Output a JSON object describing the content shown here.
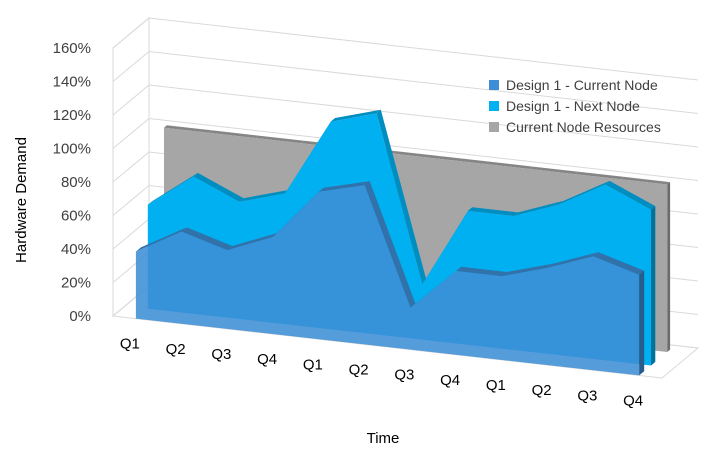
{
  "chart_data": {
    "type": "area",
    "view": "3d",
    "xlabel": "Time",
    "ylabel": "Hardware Demand",
    "categories": [
      "Q1",
      "Q2",
      "Q3",
      "Q4",
      "Q1",
      "Q2",
      "Q3",
      "Q4",
      "Q1",
      "Q2",
      "Q3",
      "Q4"
    ],
    "y_ticks": [
      "0%",
      "20%",
      "40%",
      "60%",
      "80%",
      "100%",
      "120%",
      "140%",
      "160%"
    ],
    "ylim": [
      0,
      160
    ],
    "grid": true,
    "legend_position": "top-right",
    "series": [
      {
        "name": "Design 1 - Current Node",
        "color": "#3d8ed6",
        "values": [
          40,
          55,
          47,
          58,
          88,
          95,
          25,
          50,
          50,
          58,
          68,
          60
        ]
      },
      {
        "name": "Design 1 - Next Node",
        "color": "#00b0f0",
        "values": [
          62,
          82,
          70,
          78,
          124,
          132,
          33,
          80,
          80,
          90,
          105,
          93
        ]
      },
      {
        "name": "Current Node Resources",
        "color": "#a6a6a6",
        "values": [
          100,
          100,
          100,
          100,
          100,
          100,
          100,
          100,
          100,
          100,
          100,
          100
        ]
      }
    ]
  }
}
